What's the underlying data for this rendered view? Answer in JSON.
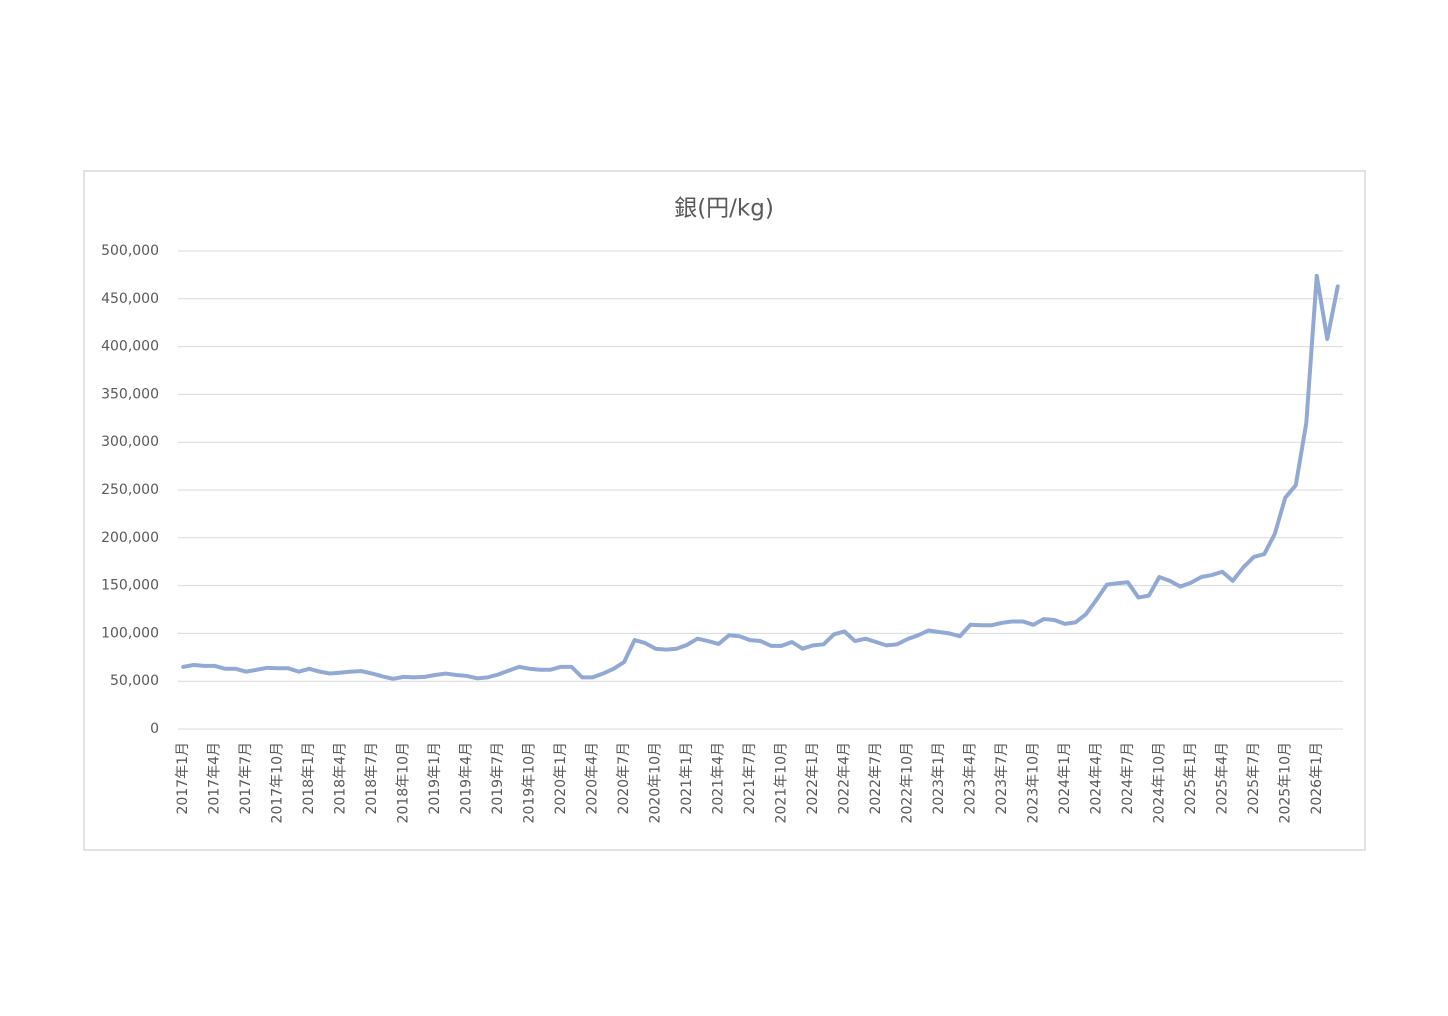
{
  "chart_data": {
    "type": "line",
    "title": "銀(円/kg)",
    "categories": [
      "2017年1月",
      null,
      null,
      "2017年4月",
      null,
      null,
      "2017年7月",
      null,
      null,
      "2017年10月",
      null,
      null,
      "2018年1月",
      null,
      null,
      "2018年4月",
      null,
      null,
      "2018年7月",
      null,
      null,
      "2018年10月",
      null,
      null,
      "2019年1月",
      null,
      null,
      "2019年4月",
      null,
      null,
      "2019年7月",
      null,
      null,
      "2019年10月",
      null,
      null,
      "2020年1月",
      null,
      null,
      "2020年4月",
      null,
      null,
      "2020年7月",
      null,
      null,
      "2020年10月",
      null,
      null,
      "2021年1月",
      null,
      null,
      "2021年4月",
      null,
      null,
      "2021年7月",
      null,
      null,
      "2021年10月",
      null,
      null,
      "2022年1月",
      null,
      null,
      "2022年4月",
      null,
      null,
      "2022年7月",
      null,
      null,
      "2022年10月",
      null,
      null,
      "2023年1月",
      null,
      null,
      "2023年4月",
      null,
      null,
      "2023年7月",
      null,
      null,
      "2023年10月",
      null,
      null,
      "2024年1月",
      null,
      null,
      "2024年4月",
      null,
      null,
      "2024年7月",
      null,
      null,
      "2024年10月",
      null,
      null,
      "2025年1月",
      null,
      null,
      "2025年4月",
      null,
      null,
      "2025年7月",
      null,
      null,
      "2025年10月",
      null,
      null,
      "2026年1月",
      null,
      null
    ],
    "values": [
      65000,
      67000,
      66000,
      66000,
      63000,
      63000,
      60000,
      62000,
      64000,
      63500,
      63500,
      60000,
      63000,
      60000,
      58000,
      59000,
      60000,
      60500,
      58000,
      55000,
      52500,
      54500,
      54000,
      54500,
      56500,
      58000,
      56500,
      55500,
      53000,
      54000,
      57000,
      61000,
      65000,
      63000,
      62000,
      62000,
      65000,
      65000,
      54000,
      54000,
      58000,
      63000,
      70000,
      93000,
      90000,
      84000,
      83000,
      84000,
      88000,
      94500,
      92000,
      89000,
      98000,
      97000,
      93000,
      92000,
      87000,
      87000,
      91000,
      84000,
      87500,
      88500,
      99000,
      102000,
      92000,
      94500,
      91000,
      87500,
      88500,
      94000,
      98000,
      103000,
      101500,
      100000,
      97000,
      109000,
      108500,
      108500,
      111000,
      112500,
      112500,
      109000,
      115000,
      114000,
      110000,
      111500,
      120000,
      135000,
      151000,
      152500,
      153500,
      137500,
      139500,
      159000,
      155000,
      149000,
      153000,
      159000,
      161000,
      164500,
      155000,
      169000,
      180000,
      183000,
      204000,
      242000,
      255000,
      320000,
      474000,
      408000,
      463000
    ],
    "color": "#92a9d3",
    "ylim": [
      0,
      500000
    ],
    "yticks": [
      0,
      {
        "value": 50000,
        "label": "50,000"
      },
      {
        "value": 100000,
        "label": "100,000"
      },
      {
        "value": 150000,
        "label": "150,000"
      },
      {
        "value": 200000,
        "label": "200,000"
      },
      {
        "value": 250000,
        "label": "250,000"
      },
      {
        "value": 300000,
        "label": "300,000"
      },
      {
        "value": 350000,
        "label": "350,000"
      },
      {
        "value": 400000,
        "label": "400,000"
      },
      {
        "value": 450000,
        "label": "450,000"
      },
      {
        "value": 500000,
        "label": "500,000"
      }
    ],
    "grid": true
  }
}
